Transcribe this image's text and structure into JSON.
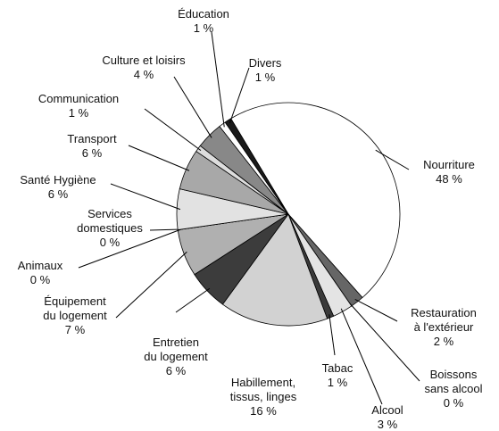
{
  "chart_data": {
    "type": "pie",
    "categories": [
      "Nourriture",
      "Restauration\nà l'extérieur",
      "Boissons\nsans alcool",
      "Alcool",
      "Tabac",
      "Habillement,\ntissus, linges",
      "Entretien\ndu logement",
      "Équipement\ndu logement",
      "Animaux",
      "Services\ndomestiques",
      "Santé Hygiène",
      "Transport",
      "Communication",
      "Culture et loisirs",
      "Éducation",
      "Divers"
    ],
    "values": [
      48,
      2,
      0,
      3,
      1,
      16,
      6,
      7,
      0,
      0,
      6,
      6,
      1,
      4,
      1,
      1
    ],
    "value_labels": [
      "48 %",
      "2 %",
      "0 %",
      "3 %",
      "1 %",
      "16 %",
      "6 %",
      "7 %",
      "0 %",
      "0 %",
      "6 %",
      "6 %",
      "1 %",
      "4 %",
      "1 %",
      "1 %"
    ],
    "colors": [
      "#ffffff",
      "#666666",
      "#ffffff",
      "#e4e4e4",
      "#3a3a3a",
      "#d2d2d2",
      "#3c3c3c",
      "#b0b0b0",
      "#cccccc",
      "#ffffff",
      "#e2e2e2",
      "#a8a8a8",
      "#dddddd",
      "#888888",
      "#ffffff",
      "#1a1a1a"
    ]
  }
}
